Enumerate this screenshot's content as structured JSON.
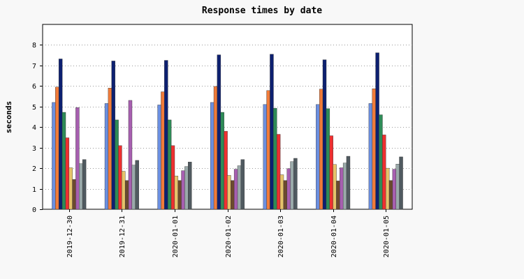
{
  "chart_data": {
    "type": "bar",
    "title": "Response times by date",
    "xlabel": "",
    "ylabel": "seconds",
    "ylim": [
      0,
      9
    ],
    "yticks": [
      0,
      1,
      2,
      3,
      4,
      5,
      6,
      7,
      8
    ],
    "grid": "horizontal dotted",
    "legend": "none",
    "categories": [
      "2019-12-30",
      "2019-12-31",
      "2020-01-01",
      "2020-01-02",
      "2020-01-03",
      "2020-01-04",
      "2020-01-05"
    ],
    "series": [
      {
        "color": "#6b8fe0",
        "values": [
          5.2,
          5.15,
          5.08,
          5.2,
          5.1,
          5.1,
          5.15
        ]
      },
      {
        "color": "#f07b3a",
        "values": [
          5.95,
          5.9,
          5.72,
          5.98,
          5.78,
          5.85,
          5.87
        ]
      },
      {
        "color": "#0d2070",
        "values": [
          7.32,
          7.22,
          7.25,
          7.52,
          7.55,
          7.28,
          7.62
        ]
      },
      {
        "color": "#2e8b57",
        "values": [
          4.72,
          4.35,
          4.35,
          4.72,
          4.92,
          4.9,
          4.6
        ]
      },
      {
        "color": "#ee3030",
        "values": [
          3.48,
          3.1,
          3.1,
          3.8,
          3.65,
          3.58,
          3.62
        ]
      },
      {
        "color": "#e6c36a",
        "values": [
          2.02,
          1.85,
          1.62,
          1.65,
          1.68,
          2.18,
          2.0
        ]
      },
      {
        "color": "#6b4a2e",
        "values": [
          1.45,
          1.4,
          1.4,
          1.4,
          1.4,
          1.38,
          1.4
        ]
      },
      {
        "color": "#a75fb0",
        "values": [
          4.95,
          5.3,
          1.88,
          1.95,
          1.98,
          2.02,
          1.95
        ]
      },
      {
        "color": "#9aaaaa",
        "values": [
          2.22,
          2.15,
          2.08,
          2.12,
          2.32,
          2.25,
          2.2
        ]
      },
      {
        "color": "#505a60",
        "values": [
          2.42,
          2.38,
          2.3,
          2.42,
          2.48,
          2.58,
          2.55
        ]
      }
    ]
  }
}
